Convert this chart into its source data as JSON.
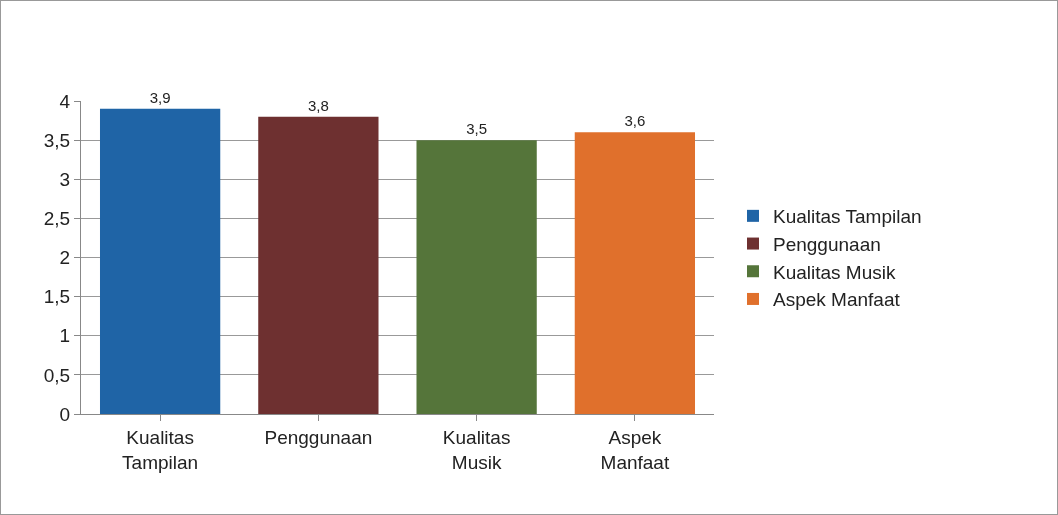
{
  "chart_data": {
    "type": "bar",
    "categories": [
      "Kualitas Tampilan",
      "Penggunaan",
      "Kualitas Musik",
      "Aspek Manfaat"
    ],
    "series": [
      {
        "name": "Kualitas Tampilan",
        "color": "#1f64a6",
        "values": [
          3.9,
          null,
          null,
          null
        ],
        "value_labels": [
          "3,9",
          null,
          null,
          null
        ]
      },
      {
        "name": "Penggunaan",
        "color": "#6e3030",
        "values": [
          null,
          3.8,
          null,
          null
        ],
        "value_labels": [
          null,
          "3,8",
          null,
          null
        ]
      },
      {
        "name": "Kualitas Musik",
        "color": "#55753a",
        "values": [
          null,
          null,
          3.5,
          null
        ],
        "value_labels": [
          null,
          null,
          "3,5",
          null
        ]
      },
      {
        "name": "Aspek Manfaat",
        "color": "#e0702c",
        "values": [
          null,
          null,
          null,
          3.6
        ],
        "value_labels": [
          null,
          null,
          null,
          "3,6"
        ]
      }
    ],
    "ylim": [
      0,
      4
    ],
    "yticks": [
      0,
      {
        "value": 0.5,
        "label": "0,5"
      },
      1,
      {
        "value": 1.5,
        "label": "1,5"
      },
      2,
      {
        "value": 2.5,
        "label": "2,5"
      },
      3,
      {
        "value": 3.5,
        "label": "3,5"
      },
      4
    ],
    "grid": "y",
    "legend": "right"
  }
}
